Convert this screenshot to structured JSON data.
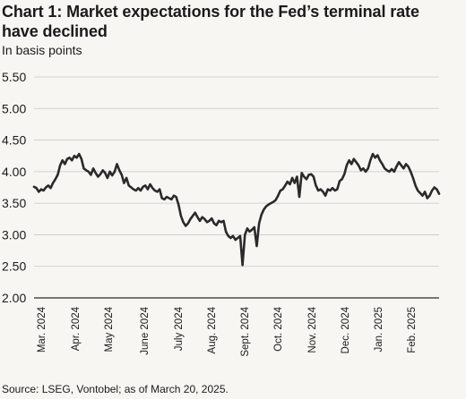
{
  "header": {
    "title": "Chart 1: Market expectations for the Fed’s terminal rate have declined",
    "subtitle": "In basis points"
  },
  "footer": {
    "source": "Source: LSEG, Vontobel; as of March 20, 2025."
  },
  "colors": {
    "background": "#f7f6f2",
    "line": "#2a2a2a",
    "grid": "#c8c8c8"
  },
  "chart_data": {
    "type": "line",
    "title": "Chart 1: Market expectations for the Fed’s terminal rate have declined",
    "ylabel": "In basis points",
    "ylim": [
      2.0,
      5.5
    ],
    "y_ticks": [
      "5.50",
      "5.00",
      "4.50",
      "4.00",
      "3.50",
      "3.00",
      "2.50",
      "2.00"
    ],
    "y_tick_values": [
      5.5,
      5.0,
      4.5,
      4.0,
      3.5,
      3.0,
      2.5,
      2.0
    ],
    "x_tick_labels": [
      "Mar. 2024",
      "Apr. 2024",
      "May 2024",
      "June 2024",
      "July 2024",
      "Aug. 2024",
      "Sept. 2024",
      "Oct. 2024",
      "Nov. 2024",
      "Dec. 2024",
      "Jan. 2025",
      "Feb. 2025"
    ],
    "grid": "horizontal",
    "legend": "none",
    "series": [
      {
        "values": [
          3.76,
          3.74,
          3.68,
          3.72,
          3.7,
          3.75,
          3.78,
          3.74,
          3.82,
          3.88,
          3.95,
          4.1,
          4.18,
          4.12,
          4.2,
          4.22,
          4.18,
          4.25,
          4.22,
          4.28,
          4.2,
          4.05,
          4.02,
          4.0,
          3.95,
          4.05,
          3.98,
          3.92,
          3.96,
          4.02,
          3.98,
          3.9,
          4.0,
          3.94,
          4.0,
          4.12,
          4.02,
          3.95,
          3.82,
          3.9,
          3.78,
          3.75,
          3.72,
          3.7,
          3.74,
          3.7,
          3.76,
          3.78,
          3.72,
          3.8,
          3.74,
          3.7,
          3.68,
          3.72,
          3.58,
          3.56,
          3.6,
          3.58,
          3.56,
          3.62,
          3.6,
          3.48,
          3.3,
          3.2,
          3.14,
          3.18,
          3.25,
          3.3,
          3.35,
          3.28,
          3.22,
          3.28,
          3.25,
          3.2,
          3.22,
          3.26,
          3.18,
          3.15,
          3.22,
          3.2,
          3.22,
          3.05,
          2.98,
          2.95,
          2.98,
          2.92,
          2.95,
          2.98,
          2.52,
          3.0,
          3.1,
          3.05,
          3.08,
          3.12,
          2.82,
          3.18,
          3.32,
          3.4,
          3.45,
          3.48,
          3.5,
          3.52,
          3.55,
          3.62,
          3.7,
          3.72,
          3.78,
          3.84,
          3.8,
          3.9,
          3.82,
          3.92,
          3.6,
          3.98,
          3.92,
          3.88,
          3.95,
          3.96,
          3.92,
          3.78,
          3.7,
          3.72,
          3.68,
          3.62,
          3.72,
          3.7,
          3.74,
          3.7,
          3.72,
          3.85,
          3.88,
          3.96,
          4.1,
          4.18,
          4.12,
          4.2,
          4.15,
          4.1,
          4.02,
          4.05,
          4.0,
          4.05,
          4.18,
          4.28,
          4.22,
          4.26,
          4.18,
          4.12,
          4.05,
          4.02,
          4.0,
          4.04,
          4.0,
          4.08,
          4.15,
          4.1,
          4.05,
          4.12,
          4.08,
          4.0,
          3.9,
          3.78,
          3.7,
          3.66,
          3.62,
          3.68,
          3.58,
          3.62,
          3.7,
          3.75,
          3.72,
          3.65
        ]
      }
    ]
  }
}
